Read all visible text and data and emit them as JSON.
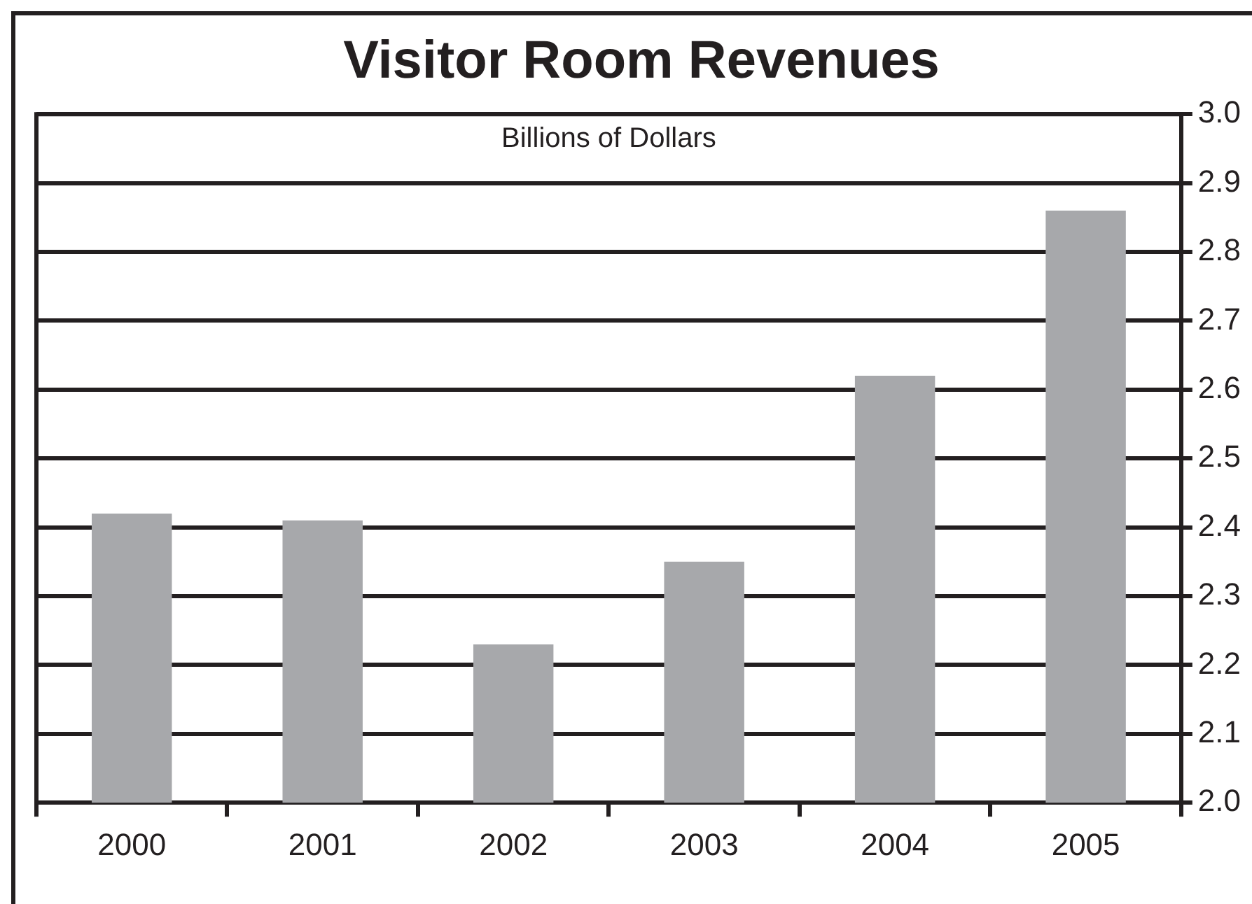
{
  "chart_data": {
    "type": "bar",
    "title": "Visitor Room Revenues",
    "ylabel": "Billions of Dollars",
    "categories": [
      "2000",
      "2001",
      "2002",
      "2003",
      "2004",
      "2005"
    ],
    "values": [
      2.42,
      2.41,
      2.23,
      2.35,
      2.62,
      2.86
    ],
    "color": "#a7a8ab",
    "ylim": [
      2.0,
      3.0
    ],
    "yticks": [
      {
        "value": 2,
        "label": "2.0"
      },
      2.1,
      2.2,
      2.3,
      2.4,
      2.5,
      2.6,
      2.7,
      2.8,
      2.9,
      {
        "value": 3,
        "label": "3.0"
      }
    ],
    "grid": "y",
    "legend": false
  }
}
